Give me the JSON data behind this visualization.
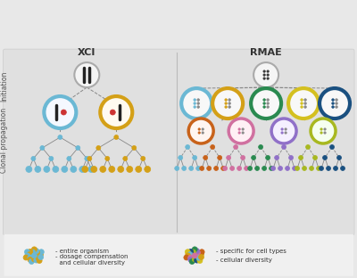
{
  "title_xci": "XCI",
  "title_rmae": "RMAE",
  "label_initiation": "Initiation",
  "label_clonal": "Clonal propagation",
  "bg_color": "#e8e8e8",
  "panel_bg": "#e8e8e8",
  "white": "#ffffff",
  "gray": "#888888",
  "light_gray": "#cccccc",
  "colors": {
    "blue": "#6bb8d4",
    "gold": "#d4a017",
    "orange": "#c8621a",
    "pink": "#d070a0",
    "purple": "#9070c8",
    "green": "#2a8a50",
    "yellow_green": "#a8b820",
    "dark_blue": "#1a5080",
    "yellow": "#d4c020"
  },
  "legend_left_text1": "- entire organism",
  "legend_left_text2": "- dosage compensation\n  and cellular diversity",
  "legend_right_text1": "- specific for cell types",
  "legend_right_text2": "- cellular diversity"
}
